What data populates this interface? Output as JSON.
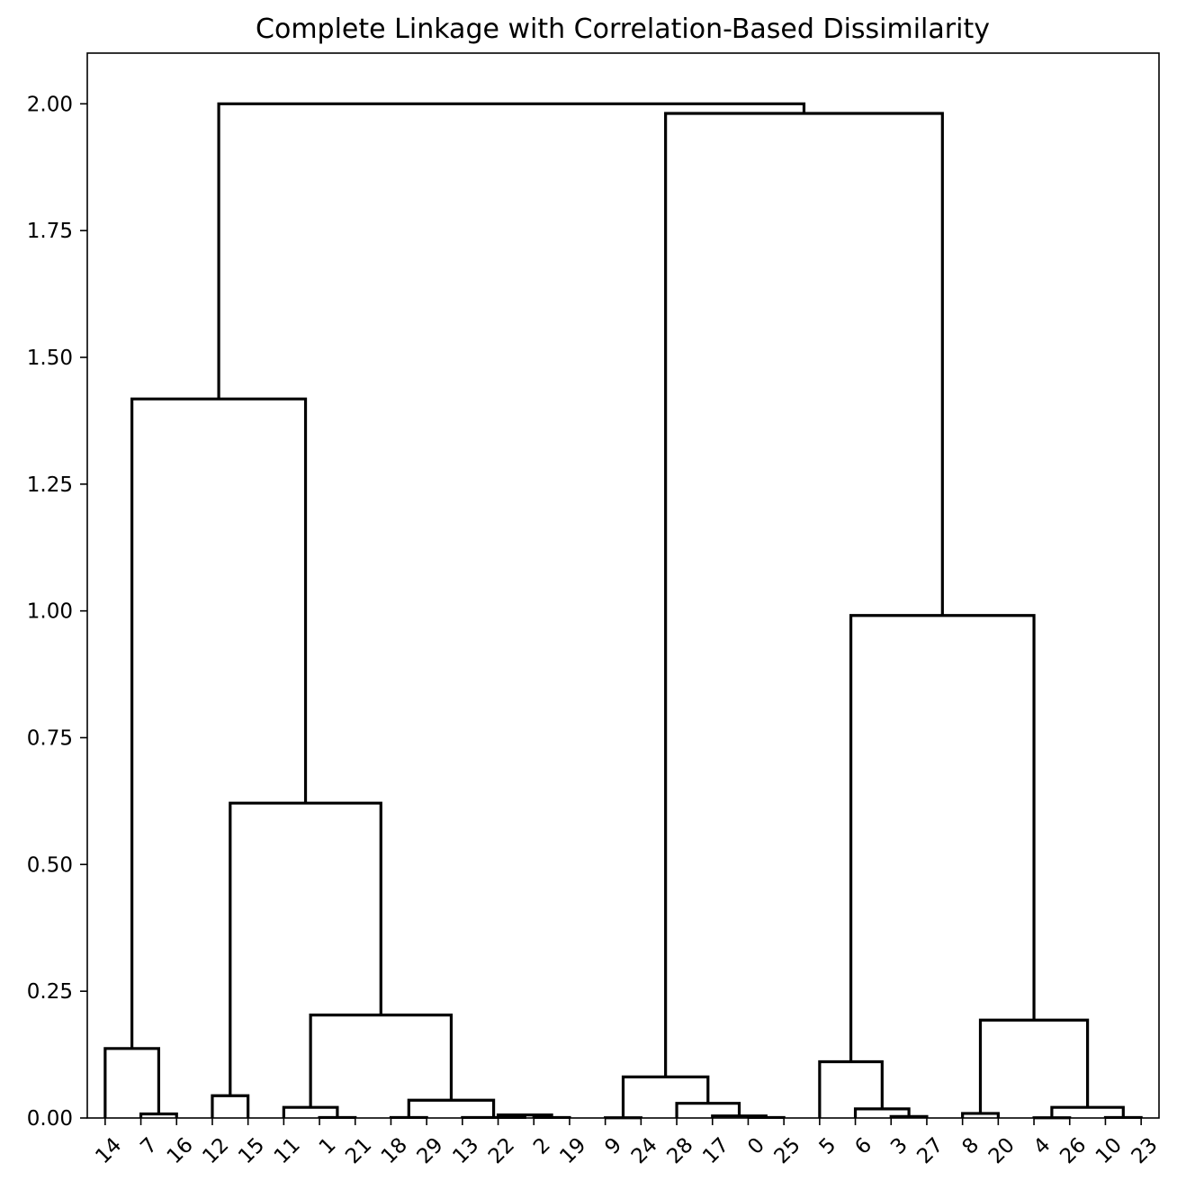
{
  "chart_data": {
    "type": "dendrogram",
    "title": "Complete Linkage with Correlation-Based Dissimilarity",
    "xlabel": "",
    "ylabel": "",
    "ylim": [
      0,
      2.1
    ],
    "yticks": [
      "0.00",
      "0.25",
      "0.50",
      "0.75",
      "1.00",
      "1.25",
      "1.50",
      "1.75",
      "2.00"
    ],
    "ytick_values": [
      0,
      0.25,
      0.5,
      0.75,
      1.0,
      1.25,
      1.5,
      1.75,
      2.0
    ],
    "leaf_order": [
      "14",
      "7",
      "16",
      "12",
      "15",
      "11",
      "1",
      "21",
      "18",
      "29",
      "13",
      "22",
      "2",
      "19",
      "9",
      "24",
      "28",
      "17",
      "0",
      "25",
      "5",
      "6",
      "3",
      "27",
      "8",
      "20",
      "4",
      "26",
      "10",
      "23"
    ],
    "line_color": "#000000",
    "grid": false,
    "merges": [
      {
        "id": "A",
        "left": "7",
        "right": "16",
        "height": 0.008
      },
      {
        "id": "B",
        "left": "14",
        "right": "A",
        "height": 0.137
      },
      {
        "id": "C",
        "left": "12",
        "right": "15",
        "height": 0.044
      },
      {
        "id": "D",
        "left": "1",
        "right": "21",
        "height": 0.001
      },
      {
        "id": "E",
        "left": "11",
        "right": "D",
        "height": 0.021
      },
      {
        "id": "F",
        "left": "18",
        "right": "29",
        "height": 0.001
      },
      {
        "id": "G",
        "left": "2",
        "right": "19",
        "height": 0.001
      },
      {
        "id": "H",
        "left": "22",
        "right": "G",
        "height": 0.006
      },
      {
        "id": "I",
        "left": "13",
        "right": "H",
        "height": 0.001
      },
      {
        "id": "J",
        "left": "F",
        "right": "I",
        "height": 0.035
      },
      {
        "id": "K",
        "left": "E",
        "right": "J",
        "height": 0.203
      },
      {
        "id": "L",
        "left": "C",
        "right": "K",
        "height": 0.621
      },
      {
        "id": "M",
        "left": "B",
        "right": "L",
        "height": 1.418
      },
      {
        "id": "N",
        "left": "9",
        "right": "24",
        "height": 0.0005
      },
      {
        "id": "O",
        "left": "0",
        "right": "25",
        "height": 0.001
      },
      {
        "id": "P",
        "left": "17",
        "right": "O",
        "height": 0.004
      },
      {
        "id": "Q",
        "left": "28",
        "right": "P",
        "height": 0.029
      },
      {
        "id": "R",
        "left": "N",
        "right": "Q",
        "height": 0.081
      },
      {
        "id": "S",
        "left": "3",
        "right": "27",
        "height": 0.003
      },
      {
        "id": "T",
        "left": "6",
        "right": "S",
        "height": 0.018
      },
      {
        "id": "U",
        "left": "5",
        "right": "T",
        "height": 0.111
      },
      {
        "id": "V",
        "left": "8",
        "right": "20",
        "height": 0.009
      },
      {
        "id": "W",
        "left": "4",
        "right": "26",
        "height": 0.0005
      },
      {
        "id": "X",
        "left": "10",
        "right": "23",
        "height": 0.001
      },
      {
        "id": "Y",
        "left": "W",
        "right": "X",
        "height": 0.021
      },
      {
        "id": "Z",
        "left": "V",
        "right": "Y",
        "height": 0.193
      },
      {
        "id": "AA",
        "left": "U",
        "right": "Z",
        "height": 0.991
      },
      {
        "id": "AB",
        "left": "R",
        "right": "AA",
        "height": 1.981
      },
      {
        "id": "AC",
        "left": "M",
        "right": "AB",
        "height": 2.0
      }
    ]
  }
}
